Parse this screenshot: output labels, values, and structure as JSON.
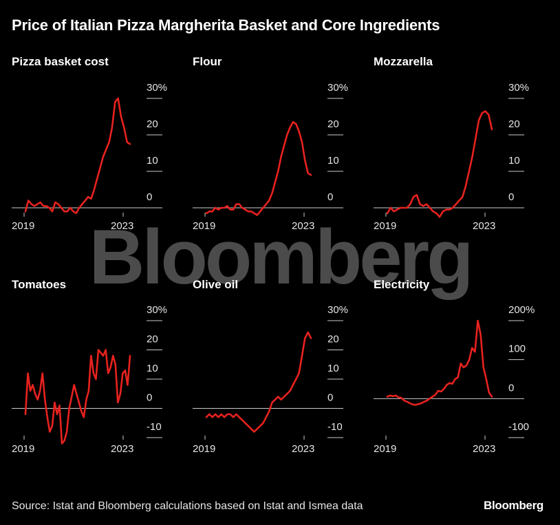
{
  "title": "Price of Italian Pizza Margherita Basket and Core Ingredients",
  "watermark": "Bloomberg",
  "source": "Source: Istat and Bloomberg calculations based on Istat and Ismea data",
  "brand": "Bloomberg",
  "colors": {
    "line": "#e8221e",
    "background": "#000000",
    "axis": "#cccccc"
  },
  "chart_data": [
    {
      "type": "line",
      "title": "Pizza basket cost",
      "unit": "%",
      "ylim": [
        -3,
        30
      ],
      "yticks": [
        0,
        10,
        20,
        30
      ],
      "ytick_labels": [
        "0",
        "10",
        "20",
        "30%"
      ],
      "xticks": [
        2019,
        2023
      ],
      "xtick_labels": [
        "2019",
        "2023"
      ],
      "series": [
        {
          "name": "Pizza basket cost",
          "values": [
            -1,
            2,
            1,
            0.5,
            1,
            1.5,
            0.5,
            0.5,
            0,
            -1,
            1.5,
            1,
            0,
            -1,
            -1,
            0,
            -1,
            -1.5,
            0,
            1,
            2,
            3,
            2.5,
            5,
            8,
            11,
            14,
            16,
            18,
            22,
            29,
            30,
            25,
            22,
            18,
            17.5
          ]
        }
      ]
    },
    {
      "type": "line",
      "title": "Flour",
      "unit": "%",
      "ylim": [
        -3,
        30
      ],
      "yticks": [
        0,
        10,
        20,
        30
      ],
      "ytick_labels": [
        "0",
        "10",
        "20",
        "30%"
      ],
      "xticks": [
        2019,
        2023
      ],
      "xtick_labels": [
        "2019",
        "2023"
      ],
      "series": [
        {
          "name": "Flour",
          "values": [
            -1.5,
            -1,
            -1,
            0,
            -0.5,
            0,
            0,
            0.5,
            -0.5,
            -0.5,
            1,
            1,
            0,
            -0.5,
            -1,
            -1,
            -1.5,
            -2,
            -1,
            0,
            1,
            2,
            4,
            7,
            10,
            14,
            17,
            20,
            22,
            23.5,
            23,
            21,
            18,
            13,
            9.5,
            9
          ]
        }
      ]
    },
    {
      "type": "line",
      "title": "Mozzarella",
      "unit": "%",
      "ylim": [
        -3,
        30
      ],
      "yticks": [
        0,
        10,
        20,
        30
      ],
      "ytick_labels": [
        "0",
        "10",
        "20",
        "30%"
      ],
      "xticks": [
        2019,
        2023
      ],
      "xtick_labels": [
        "2019",
        "2023"
      ],
      "series": [
        {
          "name": "Mozzarella",
          "values": [
            -1.5,
            0,
            -1,
            -0.5,
            0,
            0,
            0,
            1,
            3,
            3.5,
            1,
            0.5,
            1,
            0,
            -1,
            -1.5,
            -2.5,
            -1,
            -0.5,
            -0.5,
            0,
            1,
            2,
            3,
            6,
            10,
            14,
            19,
            24,
            26,
            26.5,
            25.5,
            21.5
          ]
        }
      ]
    },
    {
      "type": "line",
      "title": "Tomatoes",
      "unit": "%",
      "ylim": [
        -12,
        30
      ],
      "yticks": [
        -10,
        0,
        10,
        20,
        30
      ],
      "ytick_labels": [
        "-10",
        "0",
        "10",
        "20",
        "30%"
      ],
      "xticks": [
        2019,
        2023
      ],
      "xtick_labels": [
        "2019",
        "2023"
      ],
      "series": [
        {
          "name": "Tomatoes",
          "values": [
            -2,
            12,
            6,
            8,
            5,
            3,
            6,
            12,
            3,
            -3,
            -8,
            -6,
            2,
            -2,
            1,
            -12,
            -11,
            -8,
            0,
            4,
            8,
            5,
            2,
            -1,
            -3,
            3,
            6,
            18,
            12,
            10,
            20,
            19,
            18,
            20,
            12,
            14,
            18,
            15,
            2,
            5,
            12,
            13,
            8,
            18
          ]
        }
      ]
    },
    {
      "type": "line",
      "title": "Olive oil",
      "unit": "%",
      "ylim": [
        -12,
        30
      ],
      "yticks": [
        -10,
        0,
        10,
        20,
        30
      ],
      "ytick_labels": [
        "-10",
        "0",
        "10",
        "20",
        "30%"
      ],
      "xticks": [
        2019,
        2023
      ],
      "xtick_labels": [
        "2019",
        "2023"
      ],
      "series": [
        {
          "name": "Olive oil",
          "values": [
            -3,
            -2,
            -3,
            -2,
            -3,
            -2,
            -3,
            -2,
            -2,
            -3,
            -2,
            -3,
            -4,
            -5,
            -6,
            -7,
            -8,
            -7,
            -6,
            -5,
            -3,
            -1,
            2,
            3,
            4,
            3,
            4,
            5,
            6,
            8,
            10,
            12,
            18,
            24,
            26,
            24
          ]
        }
      ]
    },
    {
      "type": "line",
      "title": "Electricity",
      "unit": "%",
      "ylim": [
        -120,
        200
      ],
      "yticks": [
        -100,
        0,
        100,
        200
      ],
      "ytick_labels": [
        "-100",
        "0",
        "100",
        "200%"
      ],
      "xticks": [
        2019,
        2023
      ],
      "xtick_labels": [
        "2019",
        "2023"
      ],
      "series": [
        {
          "name": "Electricity",
          "values": [
            5,
            8,
            6,
            8,
            3,
            2,
            -5,
            -8,
            -12,
            -15,
            -16,
            -14,
            -12,
            -8,
            -5,
            0,
            5,
            10,
            20,
            18,
            25,
            35,
            40,
            38,
            50,
            55,
            90,
            80,
            85,
            100,
            130,
            120,
            200,
            165,
            80,
            50,
            15,
            5
          ]
        }
      ]
    }
  ]
}
